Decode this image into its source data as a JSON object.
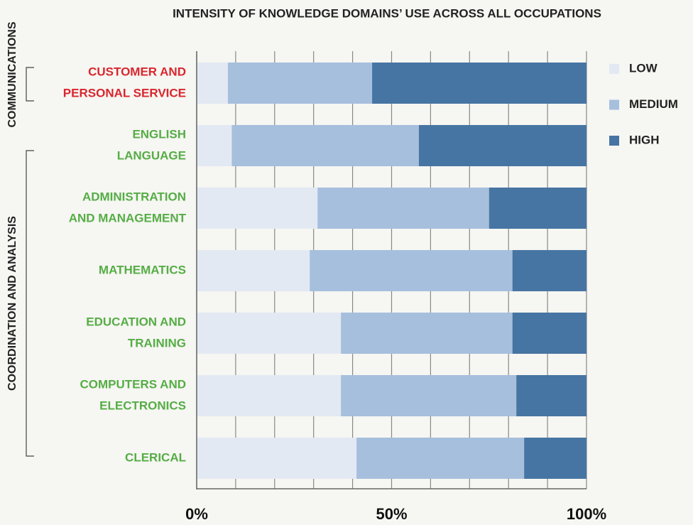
{
  "chart_data": {
    "type": "stacked-bar-horizontal",
    "title": "INTENSITY OF KNOWLEDGE DOMAINS’ USE ACROSS ALL OCCUPATIONS",
    "categories": [
      [
        "CUSTOMER AND",
        "PERSONAL SERVICE"
      ],
      [
        "ENGLISH",
        "LANGUAGE"
      ],
      [
        "ADMINISTRATION",
        "AND MANAGEMENT"
      ],
      [
        "MATHEMATICS"
      ],
      [
        "EDUCATION AND",
        "TRAINING"
      ],
      [
        "COMPUTERS AND",
        "ELECTRONICS"
      ],
      [
        "CLERICAL"
      ]
    ],
    "groups": [
      {
        "name": "COMMUNICATIONS",
        "count": 1,
        "color": "#d9262e"
      },
      {
        "name": "COORDINATION AND ANALYSIS",
        "count": 6,
        "color": "#55ad45"
      }
    ],
    "series": [
      {
        "name": "LOW",
        "color": "#e3e9f3",
        "values": [
          8,
          9,
          31,
          29,
          37,
          37,
          41
        ]
      },
      {
        "name": "MEDIUM",
        "color": "#a6bfdd",
        "values": [
          37,
          48,
          44,
          52,
          44,
          45,
          43
        ]
      },
      {
        "name": "HIGH",
        "color": "#4775a3",
        "values": [
          55,
          43,
          25,
          19,
          19,
          18,
          16
        ]
      }
    ],
    "xlim": [
      0,
      100
    ],
    "xticks": [
      {
        "value": 0,
        "label": "0%"
      },
      {
        "value": 50,
        "label": "50%"
      },
      {
        "value": 100,
        "label": "100%"
      }
    ],
    "xminor_ticks": [
      10,
      20,
      30,
      40,
      60,
      70,
      80,
      90
    ],
    "legend": "right"
  }
}
